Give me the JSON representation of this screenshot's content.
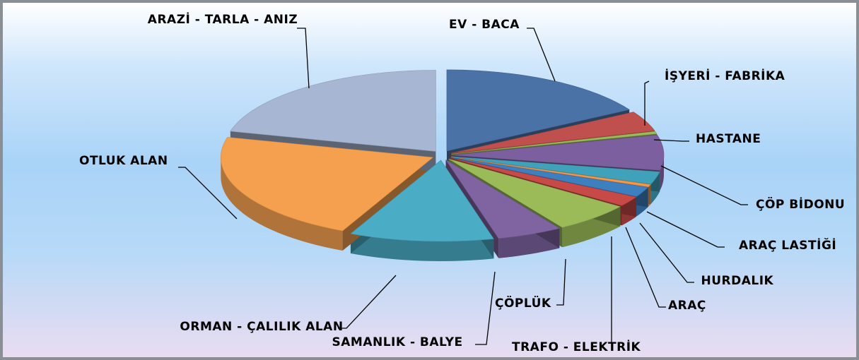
{
  "chart_data": {
    "type": "pie",
    "categories": [
      "EV - BACA",
      "İŞYERİ - FABRİKA",
      "HASTANE",
      "ÇÖP BİDONU",
      "ARAÇ LASTİĞİ",
      "HURDALIK",
      "ARAÇ",
      "TRAFO - ELEKTRİK",
      "ÇÖPLÜK",
      "SAMANLIK - BALYE",
      "ORMAN - ÇALILIK ALAN",
      "OTLUK ALAN",
      "ARAZİ - TARLA - ANIZ"
    ],
    "values": [
      16.5,
      4,
      0.5,
      7,
      2.5,
      0.5,
      2,
      2,
      6,
      5,
      11,
      22,
      21
    ],
    "colors": [
      "#4a72a6",
      "#c0504d",
      "#9bbb59",
      "#7b5f9e",
      "#3fa2ba",
      "#f79646",
      "#3e7fc0",
      "#c84a47",
      "#9bbb59",
      "#8064a2",
      "#4bacc6",
      "#f5a04f",
      "#a7b6d3"
    ]
  }
}
